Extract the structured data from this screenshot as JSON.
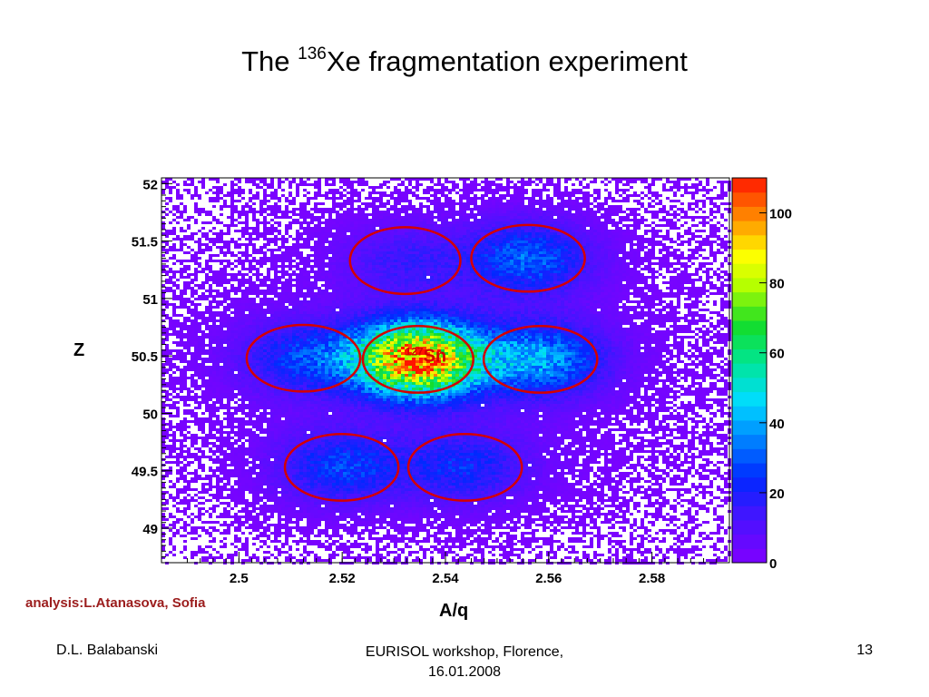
{
  "slide": {
    "title_prefix": "The ",
    "title_superscript": "136",
    "title_suffix": "Xe fragmentation experiment",
    "credit": "analysis:L.Atanasova, Sofia",
    "footer_left": "D.L. Balabanski",
    "footer_center_line1": "EURISOL workshop, Florence,",
    "footer_center_line2": "16.01.2008",
    "page_number": "13"
  },
  "chart_data": {
    "type": "heatmap",
    "xlabel": "A/q",
    "ylabel": "Z",
    "xlim": [
      2.485,
      2.595
    ],
    "ylim": [
      48.7,
      52.05
    ],
    "x_ticks": [
      "2.5",
      "2.52",
      "2.54",
      "2.56",
      "2.58"
    ],
    "x_tick_values": [
      2.5,
      2.52,
      2.54,
      2.56,
      2.58
    ],
    "y_ticks": [
      "49",
      "49.5",
      "50",
      "50.5",
      "51",
      "51.5",
      "52"
    ],
    "y_tick_values": [
      49,
      49.5,
      50,
      50.5,
      51,
      51.5,
      52
    ],
    "colorbar": {
      "min": 0,
      "max": 110,
      "ticks": [
        "0",
        "20",
        "40",
        "60",
        "80",
        "100"
      ],
      "tick_values": [
        0,
        20,
        40,
        60,
        80,
        100
      ]
    },
    "clusters": [
      {
        "x": 2.5125,
        "y": 50.48,
        "peak": 22
      },
      {
        "x": 2.5347,
        "y": 50.47,
        "peak": 100
      },
      {
        "x": 2.5584,
        "y": 50.47,
        "peak": 35
      },
      {
        "x": 2.5322,
        "y": 51.33,
        "peak": 12
      },
      {
        "x": 2.556,
        "y": 51.35,
        "peak": 28
      },
      {
        "x": 2.5199,
        "y": 49.53,
        "peak": 24
      },
      {
        "x": 2.5438,
        "y": 49.53,
        "peak": 20
      }
    ],
    "circles": [
      {
        "x": 2.5125,
        "y": 50.48,
        "rx": 0.011,
        "ry": 0.29
      },
      {
        "x": 2.5347,
        "y": 50.47,
        "rx": 0.0107,
        "ry": 0.29
      },
      {
        "x": 2.5584,
        "y": 50.47,
        "rx": 0.011,
        "ry": 0.29
      },
      {
        "x": 2.5322,
        "y": 51.33,
        "rx": 0.0107,
        "ry": 0.29
      },
      {
        "x": 2.556,
        "y": 51.35,
        "rx": 0.011,
        "ry": 0.29
      },
      {
        "x": 2.5199,
        "y": 49.53,
        "rx": 0.011,
        "ry": 0.29
      },
      {
        "x": 2.5438,
        "y": 49.53,
        "rx": 0.011,
        "ry": 0.29
      }
    ],
    "annotation": {
      "mass": "127",
      "element": "Sn",
      "x": 2.5362,
      "y": 50.45,
      "color": "#d40000"
    },
    "circle_color": "#d40000",
    "grid": false
  }
}
